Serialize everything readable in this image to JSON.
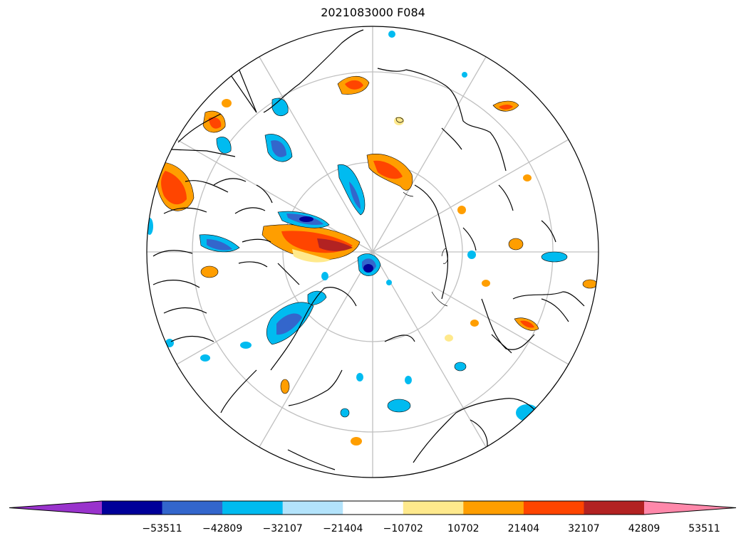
{
  "title": "2021083000 F084",
  "colorbar": {
    "colors": [
      "#9933cc",
      "#000099",
      "#3366cc",
      "#00bbf0",
      "#b3e3fb",
      "#ffffff",
      "#ffe98c",
      "#ff9e00",
      "#ff4500",
      "#b22222",
      "#ff88aa"
    ],
    "ticks": [
      "−53511",
      "−42809",
      "−32107",
      "−21404",
      "−10702",
      "10702",
      "21404",
      "32107",
      "42809",
      "53511"
    ],
    "extend": "both"
  },
  "map": {
    "projection": "north-polar-stereographic",
    "grid_color": "#c0c0c0",
    "coastline_color": "#000000"
  }
}
